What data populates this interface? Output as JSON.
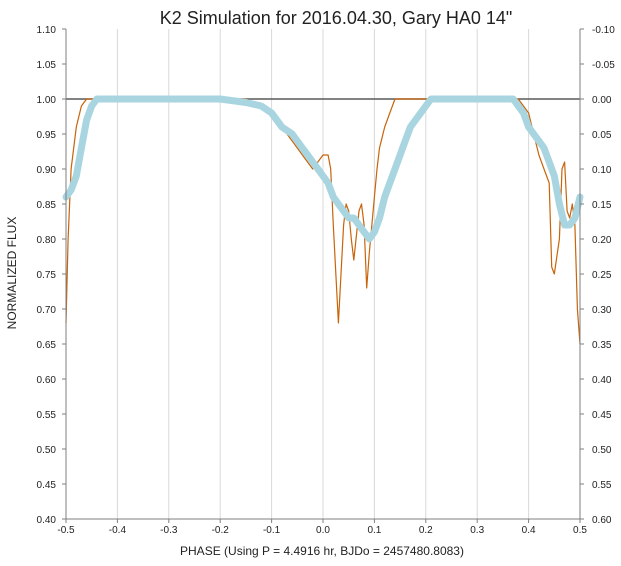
{
  "chart_data": {
    "type": "line",
    "title": "K2 Simulation for 2016.04.30, Gary HA0 14\"",
    "xlabel": "PHASE (Using P = 4.4916 hr, BJDo = 2457480.8083)",
    "ylabel": "NORMALIZED FLUX",
    "xlim": [
      -0.5,
      0.5
    ],
    "ylim": [
      0.4,
      1.1
    ],
    "y2lim": [
      0.6,
      -0.1
    ],
    "x_ticks": [
      "-0.5",
      "-0.4",
      "-0.3",
      "-0.2",
      "-0.1",
      "0.0",
      "0.1",
      "0.2",
      "0.3",
      "0.4",
      "0.5"
    ],
    "y_ticks": [
      "0.40",
      "0.45",
      "0.50",
      "0.55",
      "0.60",
      "0.65",
      "0.70",
      "0.75",
      "0.80",
      "0.85",
      "0.90",
      "0.95",
      "1.00",
      "1.05",
      "1.10"
    ],
    "y2_ticks": [
      "0.60",
      "0.55",
      "0.50",
      "0.45",
      "0.40",
      "0.35",
      "0.30",
      "0.25",
      "0.20",
      "0.15",
      "0.10",
      "0.05",
      "0.00",
      "-0.05",
      "-0.10"
    ],
    "reference_line_y": 1.0,
    "grid": "vertical",
    "legend": "none",
    "colors": {
      "model": "#c8640a",
      "observed": "#a9d5e0",
      "reference": "#595959",
      "grid": "#d9d9d9"
    },
    "series": [
      {
        "style": "thin-line",
        "x": [
          -0.5,
          -0.496,
          -0.49,
          -0.48,
          -0.47,
          -0.46,
          -0.45,
          -0.44,
          -0.43,
          -0.42,
          -0.4,
          -0.35,
          -0.3,
          -0.25,
          -0.2,
          -0.15,
          -0.12,
          -0.1,
          -0.08,
          -0.06,
          -0.04,
          -0.02,
          0.0,
          0.01,
          0.015,
          0.02,
          0.03,
          0.04,
          0.045,
          0.05,
          0.055,
          0.06,
          0.07,
          0.075,
          0.08,
          0.085,
          0.09,
          0.1,
          0.105,
          0.11,
          0.12,
          0.13,
          0.14,
          0.15,
          0.155,
          0.16,
          0.17,
          0.18,
          0.19,
          0.2,
          0.25,
          0.3,
          0.35,
          0.38,
          0.4,
          0.41,
          0.42,
          0.43,
          0.44,
          0.445,
          0.45,
          0.46,
          0.465,
          0.47,
          0.475,
          0.48,
          0.485,
          0.49,
          0.495,
          0.5
        ],
        "y": [
          0.68,
          0.8,
          0.9,
          0.96,
          0.99,
          1.0,
          1.0,
          1.0,
          1.0,
          1.0,
          1.0,
          1.0,
          1.0,
          1.0,
          1.0,
          1.0,
          0.99,
          0.98,
          0.96,
          0.94,
          0.92,
          0.9,
          0.92,
          0.92,
          0.9,
          0.82,
          0.68,
          0.82,
          0.85,
          0.84,
          0.8,
          0.77,
          0.84,
          0.85,
          0.82,
          0.73,
          0.78,
          0.86,
          0.9,
          0.93,
          0.96,
          0.98,
          1.0,
          1.0,
          1.0,
          1.0,
          1.0,
          1.0,
          1.0,
          1.0,
          1.0,
          1.0,
          1.0,
          1.0,
          0.98,
          0.95,
          0.92,
          0.9,
          0.88,
          0.76,
          0.75,
          0.8,
          0.9,
          0.91,
          0.84,
          0.83,
          0.85,
          0.82,
          0.7,
          0.65
        ]
      },
      {
        "style": "thick-markers",
        "x": [
          -0.5,
          -0.49,
          -0.48,
          -0.47,
          -0.46,
          -0.45,
          -0.44,
          -0.43,
          -0.42,
          -0.4,
          -0.3,
          -0.2,
          -0.15,
          -0.12,
          -0.1,
          -0.08,
          -0.06,
          -0.05,
          -0.04,
          -0.03,
          -0.02,
          -0.01,
          0.0,
          0.01,
          0.02,
          0.03,
          0.04,
          0.05,
          0.06,
          0.07,
          0.08,
          0.09,
          0.1,
          0.11,
          0.12,
          0.13,
          0.14,
          0.15,
          0.16,
          0.17,
          0.18,
          0.19,
          0.2,
          0.21,
          0.22,
          0.23,
          0.3,
          0.35,
          0.37,
          0.38,
          0.39,
          0.4,
          0.41,
          0.42,
          0.43,
          0.44,
          0.45,
          0.46,
          0.47,
          0.48,
          0.49,
          0.5
        ],
        "y": [
          0.86,
          0.87,
          0.89,
          0.93,
          0.97,
          0.99,
          1.0,
          1.0,
          1.0,
          1.0,
          1.0,
          1.0,
          0.995,
          0.99,
          0.98,
          0.96,
          0.95,
          0.94,
          0.93,
          0.92,
          0.91,
          0.9,
          0.89,
          0.88,
          0.86,
          0.85,
          0.84,
          0.83,
          0.83,
          0.82,
          0.81,
          0.8,
          0.81,
          0.83,
          0.86,
          0.88,
          0.9,
          0.92,
          0.94,
          0.96,
          0.97,
          0.98,
          0.99,
          1.0,
          1.0,
          1.0,
          1.0,
          1.0,
          1.0,
          0.99,
          0.98,
          0.96,
          0.95,
          0.94,
          0.93,
          0.91,
          0.89,
          0.85,
          0.82,
          0.82,
          0.83,
          0.86
        ]
      }
    ]
  }
}
